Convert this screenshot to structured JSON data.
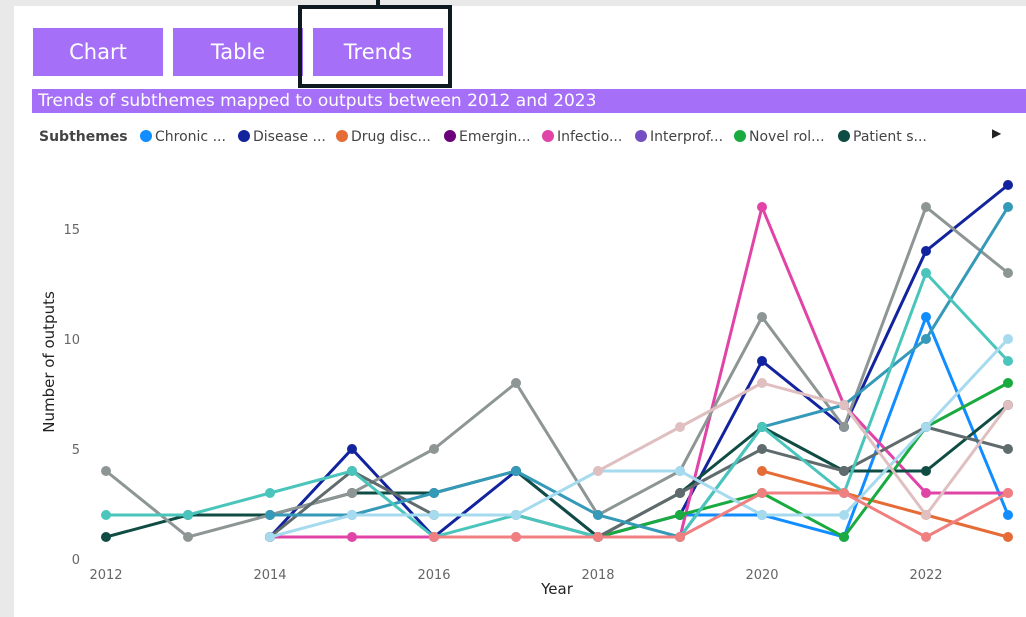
{
  "tabs": [
    "Chart",
    "Table",
    "Trends"
  ],
  "chart_data": {
    "type": "line",
    "title": "Trends of subthemes mapped to outputs between 2012 and 2023",
    "legend_title": "Subthemes",
    "xlabel": "Year",
    "ylabel": "Number of outputs",
    "x": [
      2012,
      2013,
      2014,
      2015,
      2016,
      2017,
      2018,
      2019,
      2020,
      2021,
      2022,
      2023
    ],
    "xlim": [
      2012,
      2023
    ],
    "xticks": [
      2012,
      2014,
      2016,
      2018,
      2020,
      2022
    ],
    "ylim": [
      0,
      18
    ],
    "yticks": [
      0,
      5,
      10,
      15
    ],
    "series": [
      {
        "name": "Chronic ...",
        "color": "#118dff",
        "values": [
          null,
          null,
          null,
          null,
          null,
          null,
          null,
          2,
          2,
          1,
          11,
          2
        ]
      },
      {
        "name": "Disease ...",
        "color": "#12239e",
        "values": [
          null,
          null,
          1,
          5,
          1,
          4,
          1,
          2,
          9,
          6,
          14,
          17
        ]
      },
      {
        "name": "Drug disc...",
        "color": "#e66c37",
        "values": [
          null,
          null,
          null,
          null,
          null,
          null,
          null,
          null,
          4,
          3,
          2,
          1
        ]
      },
      {
        "name": "Emergin...",
        "color": "#6b007b",
        "values": [
          null,
          null,
          null,
          null,
          null,
          null,
          null,
          null,
          null,
          null,
          null,
          null
        ]
      },
      {
        "name": "Infectio...",
        "color": "#e044a7",
        "values": [
          null,
          null,
          1,
          1,
          1,
          1,
          1,
          1,
          16,
          7,
          3,
          3
        ]
      },
      {
        "name": "Interprof...",
        "color": "#744ec2",
        "values": [
          null,
          null,
          null,
          null,
          null,
          null,
          null,
          null,
          null,
          null,
          null,
          null
        ]
      },
      {
        "name": "Novel rol...",
        "color": "#1aab40",
        "values": [
          null,
          null,
          null,
          null,
          null,
          null,
          1,
          2,
          3,
          1,
          6,
          8
        ]
      },
      {
        "name": "Patient s...",
        "color": "#0f4c44",
        "values": [
          1,
          2,
          2,
          3,
          3,
          4,
          1,
          3,
          6,
          4,
          4,
          7
        ]
      },
      {
        "color": "#8d9595",
        "values": [
          4,
          1,
          2,
          3,
          5,
          8,
          2,
          4,
          11,
          6,
          16,
          13
        ]
      },
      {
        "color": "#5f6b6d",
        "values": [
          null,
          null,
          1,
          4,
          2,
          2,
          1,
          3,
          5,
          4,
          6,
          5
        ]
      },
      {
        "color": "#3599b8",
        "values": [
          null,
          null,
          2,
          2,
          3,
          4,
          2,
          1,
          6,
          7,
          10,
          16
        ]
      },
      {
        "color": "#4ac5bb",
        "values": [
          2,
          2,
          3,
          4,
          1,
          2,
          1,
          1,
          6,
          3,
          13,
          9
        ]
      },
      {
        "color": "#a6dbef",
        "values": [
          null,
          null,
          1,
          2,
          2,
          2,
          4,
          4,
          2,
          2,
          6,
          10
        ]
      },
      {
        "color": "#dfbfbf",
        "values": [
          null,
          null,
          null,
          null,
          null,
          null,
          4,
          6,
          8,
          7,
          2,
          7
        ]
      },
      {
        "color": "#f08080",
        "values": [
          null,
          null,
          null,
          null,
          1,
          1,
          1,
          1,
          3,
          3,
          1,
          3
        ]
      }
    ]
  }
}
